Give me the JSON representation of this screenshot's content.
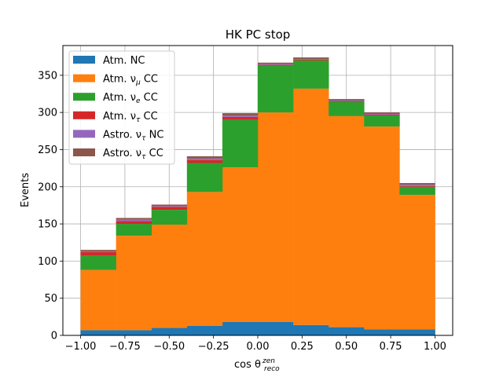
{
  "chart_data": {
    "type": "bar",
    "title": "HK PC stop",
    "xlabel": "cos θ",
    "xlabel_sup": "zen",
    "xlabel_sub": "reco",
    "ylabel": "Events",
    "xlim": [
      -1.1,
      1.1
    ],
    "ylim": [
      0,
      390
    ],
    "x_ticks": [
      -1.0,
      -0.75,
      -0.5,
      -0.25,
      0.0,
      0.25,
      0.5,
      0.75,
      1.0
    ],
    "x_tick_labels": [
      "−1.00",
      "−0.75",
      "−0.50",
      "−0.25",
      "0.00",
      "0.25",
      "0.50",
      "0.75",
      "1.00"
    ],
    "y_ticks": [
      0,
      50,
      100,
      150,
      200,
      250,
      300,
      350
    ],
    "y_tick_labels": [
      "0",
      "50",
      "100",
      "150",
      "200",
      "250",
      "300",
      "350"
    ],
    "grid": true,
    "legend_position": "top-left",
    "bin_edges": [
      -1.0,
      -0.8,
      -0.6,
      -0.4,
      -0.2,
      0.0,
      0.2,
      0.4,
      0.6,
      0.8,
      1.0
    ],
    "series": [
      {
        "name": "Atm. NC",
        "legend_base": "Atm. NC",
        "legend_sym": "",
        "legend_tail": "",
        "color": "#1f77b4",
        "values": [
          7,
          7,
          10,
          13,
          18,
          18,
          14,
          11,
          8,
          8
        ]
      },
      {
        "name": "Atm. ν_μ CC",
        "legend_base": "Atm. ν",
        "legend_sym": "μ",
        "legend_tail": " CC",
        "color": "#ff7f0e",
        "values": [
          81,
          127,
          139,
          180,
          208,
          282,
          318,
          284,
          273,
          181
        ]
      },
      {
        "name": "Atm. ν_e CC",
        "legend_base": "Atm. ν",
        "legend_sym": "e",
        "legend_tail": " CC",
        "color": "#2ca02c",
        "values": [
          19,
          16,
          20,
          39,
          64,
          63,
          38,
          19,
          15,
          11
        ]
      },
      {
        "name": "Atm. ν_τ CC",
        "legend_base": "Atm. ν",
        "legend_sym": "τ",
        "legend_tail": " CC",
        "color": "#d62728",
        "values": [
          5,
          4,
          4,
          4,
          4,
          1,
          1,
          1,
          1,
          1
        ]
      },
      {
        "name": "Astro. ν_τ NC",
        "legend_base": "Astro. ν",
        "legend_sym": "τ",
        "legend_tail": " NC",
        "color": "#9467bd",
        "values": [
          1,
          2,
          1,
          2,
          2,
          1,
          1,
          1,
          1,
          2
        ]
      },
      {
        "name": "Astro. ν_τ CC",
        "legend_base": "Astro. ν",
        "legend_sym": "τ",
        "legend_tail": " CC",
        "color": "#8c564b",
        "values": [
          2,
          2,
          2,
          3,
          3,
          2,
          2,
          2,
          2,
          2
        ]
      }
    ]
  }
}
